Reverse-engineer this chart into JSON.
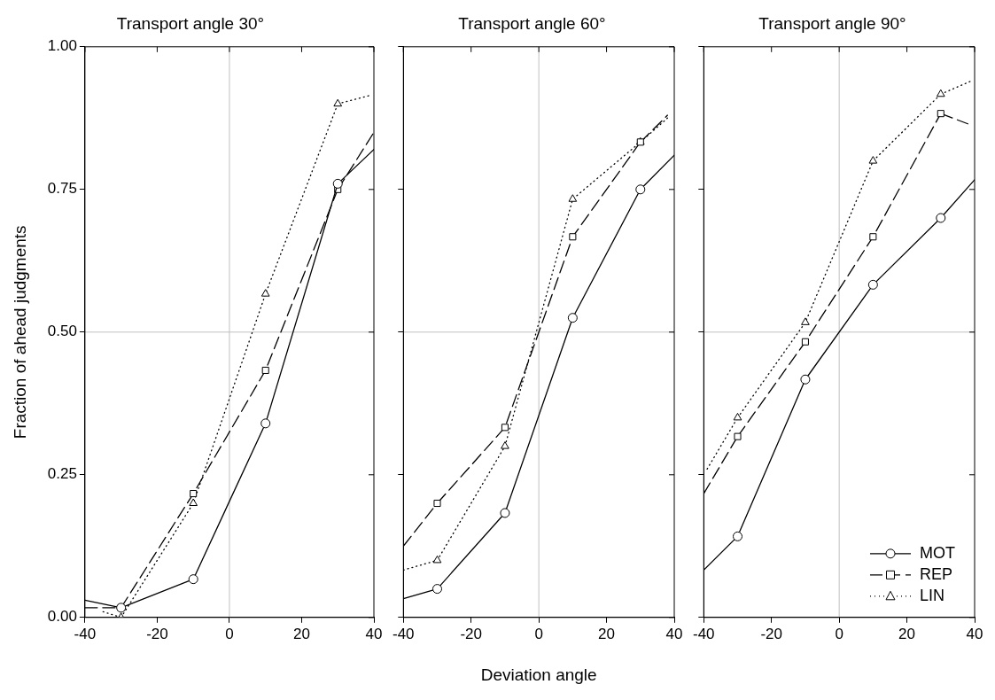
{
  "chart_data": [
    {
      "type": "line",
      "title": "Transport angle 30°",
      "ylabel": "Fraction of ahead judgments",
      "xlim": [
        -40,
        40
      ],
      "xticks": [
        -40,
        -20,
        0,
        20,
        40
      ],
      "ylim": [
        0,
        1
      ],
      "yticks": [
        {
          "value": 0,
          "label": "0.00"
        },
        {
          "value": 0.25,
          "label": "0.25"
        },
        {
          "value": 0.5,
          "label": "0.50"
        },
        {
          "value": 0.75,
          "label": "0.75"
        },
        {
          "value": 1,
          "label": "1.00"
        }
      ],
      "grid": false,
      "legend": false,
      "ref_lines": [
        {
          "axis": "x",
          "value": 0,
          "color": "#c0c0c0"
        },
        {
          "axis": "y",
          "value": 0.5,
          "color": "#c0c0c0"
        }
      ],
      "series": [
        {
          "color": "#000000",
          "marker": "circle",
          "line_style": "solid",
          "x": [
            -30,
            -10,
            10,
            30
          ],
          "values": [
            0.017,
            0.067,
            0.34,
            0.76
          ]
        },
        {
          "color": "#000000",
          "marker": "square",
          "line_style": "dashed",
          "x": [
            -30,
            -10,
            10,
            30
          ],
          "values": [
            0.017,
            0.217,
            0.433,
            0.75
          ]
        },
        {
          "color": "#000000",
          "marker": "triangle",
          "line_style": "dotted",
          "x": [
            -30,
            -10,
            10,
            30
          ],
          "values": [
            0.0,
            0.2,
            0.567,
            0.9
          ]
        },
        {
          "color": "#000000",
          "marker": "none",
          "line_style": "solid",
          "x": [
            -40,
            -30,
            0,
            30,
            40
          ],
          "values": [
            0.03,
            0.017,
            null,
            0.76,
            0.82
          ]
        },
        {
          "color": "#000000",
          "marker": "none",
          "line_style": "dashed",
          "x": [
            -40,
            -30,
            0,
            30,
            40
          ],
          "values": [
            0.017,
            0.017,
            null,
            0.75,
            0.85
          ]
        },
        {
          "color": "#000000",
          "marker": "none",
          "line_style": "dotted",
          "x": [
            -35,
            -30,
            0,
            30,
            39
          ],
          "values": [
            0.01,
            0.0,
            null,
            0.9,
            0.915
          ]
        }
      ]
    },
    {
      "type": "line",
      "title": "Transport angle 60°",
      "xlabel": "Deviation angle",
      "xlim": [
        -40,
        40
      ],
      "xticks": [
        -40,
        -20,
        0,
        20,
        40
      ],
      "ylim": [
        0,
        1
      ],
      "yticks": [
        {
          "value": 0,
          "label": null
        },
        {
          "value": 0.25,
          "label": null
        },
        {
          "value": 0.5,
          "label": null
        },
        {
          "value": 0.75,
          "label": null
        },
        {
          "value": 1,
          "label": null
        }
      ],
      "tick_labels": "x",
      "grid": false,
      "legend": false,
      "ref_lines": [
        {
          "axis": "x",
          "value": 0,
          "color": "#c0c0c0"
        },
        {
          "axis": "y",
          "value": 0.5,
          "color": "#c0c0c0"
        }
      ],
      "series": [
        {
          "color": "#000000",
          "marker": "circle",
          "line_style": "solid",
          "x": [
            -30,
            -10,
            10,
            30
          ],
          "values": [
            0.05,
            0.183,
            0.525,
            0.75
          ]
        },
        {
          "color": "#000000",
          "marker": "square",
          "line_style": "dashed",
          "x": [
            -30,
            -10,
            10,
            30
          ],
          "values": [
            0.2,
            0.333,
            0.667,
            0.833
          ]
        },
        {
          "color": "#000000",
          "marker": "triangle",
          "line_style": "dotted",
          "x": [
            -30,
            -10,
            10,
            30
          ],
          "values": [
            0.1,
            0.3,
            0.733,
            0.833
          ]
        },
        {
          "color": "#000000",
          "marker": "none",
          "line_style": "solid",
          "x": [
            -40,
            -30,
            0,
            30,
            40
          ],
          "values": [
            0.033,
            0.05,
            null,
            0.75,
            0.81
          ]
        },
        {
          "color": "#000000",
          "marker": "none",
          "line_style": "dashed",
          "x": [
            -40,
            -30,
            0,
            30,
            38
          ],
          "values": [
            0.125,
            0.2,
            null,
            0.833,
            0.88
          ]
        },
        {
          "color": "#000000",
          "marker": "none",
          "line_style": "dotted",
          "x": [
            -40,
            -30,
            0,
            30,
            38
          ],
          "values": [
            0.083,
            0.1,
            null,
            0.833,
            0.875
          ]
        }
      ]
    },
    {
      "type": "line",
      "title": "Transport angle 90°",
      "xlim": [
        -40,
        40
      ],
      "xticks": [
        -40,
        -20,
        0,
        20,
        40
      ],
      "ylim": [
        0,
        1
      ],
      "yticks": [
        {
          "value": 0,
          "label": null
        },
        {
          "value": 0.25,
          "label": null
        },
        {
          "value": 0.5,
          "label": null
        },
        {
          "value": 0.75,
          "label": null
        },
        {
          "value": 1,
          "label": null
        }
      ],
      "tick_labels": "x",
      "grid": false,
      "legend": "bottom right",
      "ref_lines": [
        {
          "axis": "x",
          "value": 0,
          "color": "#c0c0c0"
        },
        {
          "axis": "y",
          "value": 0.5,
          "color": "#c0c0c0"
        }
      ],
      "series": [
        {
          "name": "MOT",
          "color": "#000000",
          "marker": "circle",
          "line_style": "solid",
          "x": [
            -30,
            -10,
            10,
            30
          ],
          "values": [
            0.142,
            0.417,
            0.583,
            0.7
          ]
        },
        {
          "name": "REP",
          "color": "#000000",
          "marker": "square",
          "line_style": "dashed",
          "x": [
            -30,
            -10,
            10,
            30
          ],
          "values": [
            0.317,
            0.483,
            0.667,
            0.883
          ]
        },
        {
          "name": "LIN",
          "color": "#000000",
          "marker": "triangle",
          "line_style": "dotted",
          "x": [
            -30,
            -10,
            10,
            30
          ],
          "values": [
            0.35,
            0.517,
            0.8,
            0.917
          ]
        },
        {
          "color": "#000000",
          "marker": "none",
          "line_style": "solid",
          "x": [
            -40,
            -30,
            0,
            30,
            40
          ],
          "values": [
            0.083,
            0.142,
            null,
            0.7,
            0.767
          ]
        },
        {
          "color": "#000000",
          "marker": "none",
          "line_style": "dashed",
          "x": [
            -40,
            -30,
            0,
            30,
            38
          ],
          "values": [
            0.217,
            0.317,
            null,
            0.883,
            0.865
          ]
        },
        {
          "color": "#000000",
          "marker": "none",
          "line_style": "dotted",
          "x": [
            -39,
            -30,
            0,
            30,
            39
          ],
          "values": [
            0.26,
            0.35,
            null,
            0.917,
            0.94
          ]
        }
      ]
    }
  ]
}
